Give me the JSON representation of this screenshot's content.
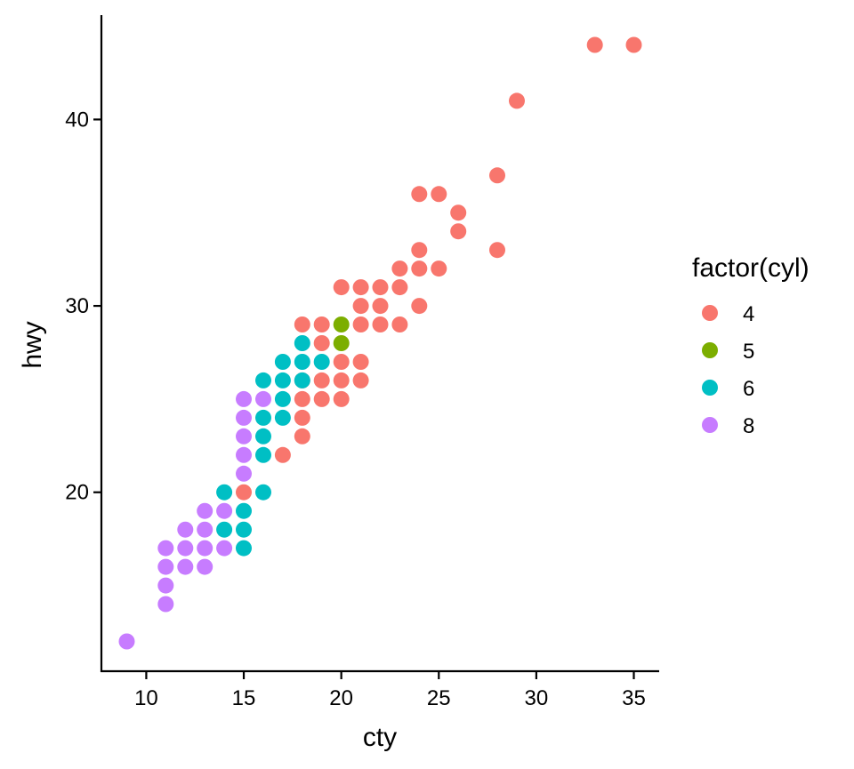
{
  "chart_data": {
    "type": "scatter",
    "title": "",
    "xlabel": "cty",
    "ylabel": "hwy",
    "xlim": [
      7.7,
      36.3
    ],
    "ylim": [
      10.4,
      45.6
    ],
    "x_ticks": [
      10,
      15,
      20,
      25,
      30,
      35
    ],
    "y_ticks": [
      20,
      30,
      40
    ],
    "grid": false,
    "legend": {
      "title": "factor(cyl)",
      "placement": "right"
    },
    "series": [
      {
        "name": "4",
        "color": "#F8766D",
        "points": [
          [
            33,
            44
          ],
          [
            35,
            44
          ],
          [
            29,
            41
          ],
          [
            28,
            37
          ],
          [
            24,
            36
          ],
          [
            25,
            36
          ],
          [
            26,
            35
          ],
          [
            26,
            34
          ],
          [
            24,
            33
          ],
          [
            28,
            33
          ],
          [
            23,
            32
          ],
          [
            24,
            32
          ],
          [
            25,
            32
          ],
          [
            20,
            31
          ],
          [
            21,
            31
          ],
          [
            22,
            31
          ],
          [
            23,
            31
          ],
          [
            21,
            30
          ],
          [
            22,
            30
          ],
          [
            24,
            30
          ],
          [
            18,
            29
          ],
          [
            19,
            29
          ],
          [
            21,
            29
          ],
          [
            22,
            29
          ],
          [
            23,
            29
          ],
          [
            19,
            28
          ],
          [
            20,
            27
          ],
          [
            21,
            27
          ],
          [
            18,
            26
          ],
          [
            19,
            26
          ],
          [
            20,
            26
          ],
          [
            21,
            26
          ],
          [
            18,
            25
          ],
          [
            19,
            25
          ],
          [
            20,
            25
          ],
          [
            18,
            24
          ],
          [
            18,
            23
          ],
          [
            17,
            22
          ],
          [
            15,
            20
          ]
        ]
      },
      {
        "name": "5",
        "color": "#7CAE00",
        "points": [
          [
            20,
            29
          ],
          [
            20,
            28
          ]
        ]
      },
      {
        "name": "6",
        "color": "#00BFC4",
        "points": [
          [
            18,
            28
          ],
          [
            19,
            27
          ],
          [
            17,
            27
          ],
          [
            18,
            27
          ],
          [
            16,
            26
          ],
          [
            17,
            26
          ],
          [
            18,
            26
          ],
          [
            17,
            25
          ],
          [
            16,
            24
          ],
          [
            17,
            24
          ],
          [
            16,
            23
          ],
          [
            16,
            22
          ],
          [
            16,
            20
          ],
          [
            14,
            20
          ],
          [
            15,
            19
          ],
          [
            14,
            18
          ],
          [
            15,
            18
          ],
          [
            15,
            17
          ]
        ]
      },
      {
        "name": "8",
        "color": "#C77CFF",
        "points": [
          [
            15,
            25
          ],
          [
            16,
            25
          ],
          [
            15,
            24
          ],
          [
            15,
            23
          ],
          [
            15,
            22
          ],
          [
            15,
            21
          ],
          [
            13,
            19
          ],
          [
            14,
            19
          ],
          [
            12,
            18
          ],
          [
            13,
            18
          ],
          [
            11,
            17
          ],
          [
            12,
            17
          ],
          [
            13,
            17
          ],
          [
            14,
            17
          ],
          [
            11,
            16
          ],
          [
            12,
            16
          ],
          [
            13,
            16
          ],
          [
            11,
            15
          ],
          [
            11,
            14
          ],
          [
            9,
            12
          ]
        ]
      }
    ]
  }
}
